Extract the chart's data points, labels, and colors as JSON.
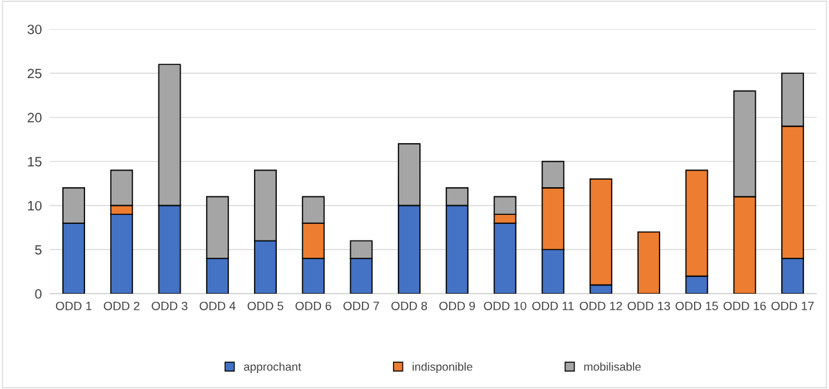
{
  "chart_data": {
    "type": "bar",
    "stacked": true,
    "categories": [
      "ODD 1",
      "ODD 2",
      "ODD 3",
      "ODD 4",
      "ODD 5",
      "ODD 6",
      "ODD 7",
      "ODD 8",
      "ODD 9",
      "ODD 10",
      "ODD 11",
      "ODD 12",
      "ODD 13",
      "ODD 15",
      "ODD 16",
      "ODD 17"
    ],
    "series": [
      {
        "name": "approchant",
        "color": "#4472c4",
        "values": [
          8,
          9,
          10,
          4,
          6,
          4,
          4,
          10,
          10,
          8,
          5,
          1,
          0,
          2,
          0,
          4
        ]
      },
      {
        "name": "indisponible",
        "color": "#ed7d31",
        "values": [
          0,
          1,
          0,
          0,
          0,
          4,
          0,
          0,
          0,
          1,
          7,
          12,
          7,
          12,
          11,
          15
        ]
      },
      {
        "name": "mobilisable",
        "color": "#a5a5a5",
        "values": [
          4,
          4,
          16,
          7,
          8,
          3,
          2,
          7,
          2,
          2,
          3,
          0,
          0,
          0,
          12,
          6
        ]
      }
    ],
    "ylim": [
      0,
      30
    ],
    "yticks": [
      0,
      5,
      10,
      15,
      20,
      25,
      30
    ],
    "grid": "y",
    "legend": "bottom"
  }
}
